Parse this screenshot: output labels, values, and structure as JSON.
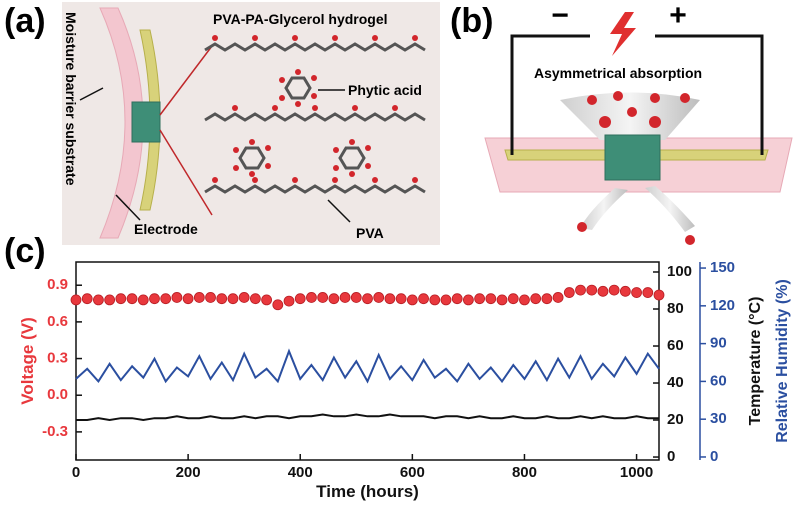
{
  "panel_a": {
    "label": "(a)",
    "title": "PVA-PA-Glycerol hydrogel",
    "phytic_acid": "Phytic acid",
    "pva": "PVA",
    "electrode": "Electrode",
    "substrate": "Moisture barrier substrate"
  },
  "panel_b": {
    "label": "(b)",
    "minus": "−",
    "plus": "+",
    "caption": "Asymmetrical absorption"
  },
  "chart_data": {
    "type": "line",
    "label": "(c)",
    "x_label": "Time (hours)",
    "y_label": "Voltage (V)",
    "y2_label": "Temperature (°C)",
    "y3_label": "Relative Humidity (%)",
    "x": [
      0,
      20,
      40,
      60,
      80,
      100,
      120,
      140,
      160,
      180,
      200,
      220,
      240,
      260,
      280,
      300,
      320,
      340,
      360,
      380,
      400,
      420,
      440,
      460,
      480,
      500,
      520,
      540,
      560,
      580,
      600,
      620,
      640,
      660,
      680,
      700,
      720,
      740,
      760,
      780,
      800,
      820,
      840,
      860,
      880,
      900,
      920,
      940,
      960,
      980,
      1000,
      1020,
      1040
    ],
    "xlim": [
      0,
      1040
    ],
    "xticks": [
      0,
      200,
      400,
      600,
      800,
      1000
    ],
    "ylim": [
      -0.53,
      1.09
    ],
    "yticks": [
      -0.3,
      {
        "value": 0,
        "label": "0.0"
      },
      0.3,
      0.6,
      0.9
    ],
    "y2lim": [
      -1.6,
      105.4
    ],
    "y2ticks": [
      0,
      20,
      40,
      60,
      80,
      100
    ],
    "y3lim": [
      -2.4,
      154.8
    ],
    "y3ticks": [
      0,
      30,
      60,
      90,
      120,
      150
    ],
    "series": [
      {
        "name": "Voltage",
        "color": "#e8383d",
        "axis": "y",
        "marker": "circle",
        "values": [
          0.78,
          0.79,
          0.78,
          0.78,
          0.79,
          0.79,
          0.78,
          0.79,
          0.79,
          0.8,
          0.79,
          0.8,
          0.8,
          0.79,
          0.79,
          0.8,
          0.79,
          0.78,
          0.74,
          0.77,
          0.79,
          0.8,
          0.8,
          0.79,
          0.8,
          0.8,
          0.79,
          0.8,
          0.79,
          0.79,
          0.78,
          0.79,
          0.78,
          0.78,
          0.79,
          0.78,
          0.79,
          0.79,
          0.78,
          0.79,
          0.78,
          0.79,
          0.79,
          0.8,
          0.84,
          0.86,
          0.86,
          0.85,
          0.86,
          0.85,
          0.84,
          0.84,
          0.82
        ]
      },
      {
        "name": "Relative Humidity",
        "color": "#2b4fa0",
        "axis": "y3",
        "values": [
          62,
          70,
          60,
          74,
          61,
          72,
          63,
          78,
          60,
          71,
          64,
          80,
          62,
          75,
          61,
          82,
          63,
          70,
          60,
          84,
          62,
          73,
          61,
          79,
          63,
          76,
          60,
          81,
          62,
          72,
          61,
          77,
          63,
          70,
          60,
          74,
          62,
          71,
          60,
          73,
          62,
          76,
          61,
          78,
          63,
          80,
          62,
          74,
          64,
          79,
          66,
          82,
          70
        ]
      },
      {
        "name": "Temperature",
        "color": "#111111",
        "axis": "y2",
        "values": [
          20,
          20,
          21,
          20,
          21,
          21,
          20,
          21,
          21,
          22,
          21,
          21,
          22,
          21,
          21,
          22,
          21,
          22,
          22,
          21,
          22,
          22,
          23,
          22,
          22,
          23,
          22,
          22,
          23,
          22,
          22,
          22,
          21,
          22,
          22,
          21,
          22,
          21,
          21,
          22,
          21,
          21,
          22,
          21,
          21,
          22,
          21,
          22,
          21,
          21,
          22,
          21,
          21
        ]
      }
    ]
  }
}
